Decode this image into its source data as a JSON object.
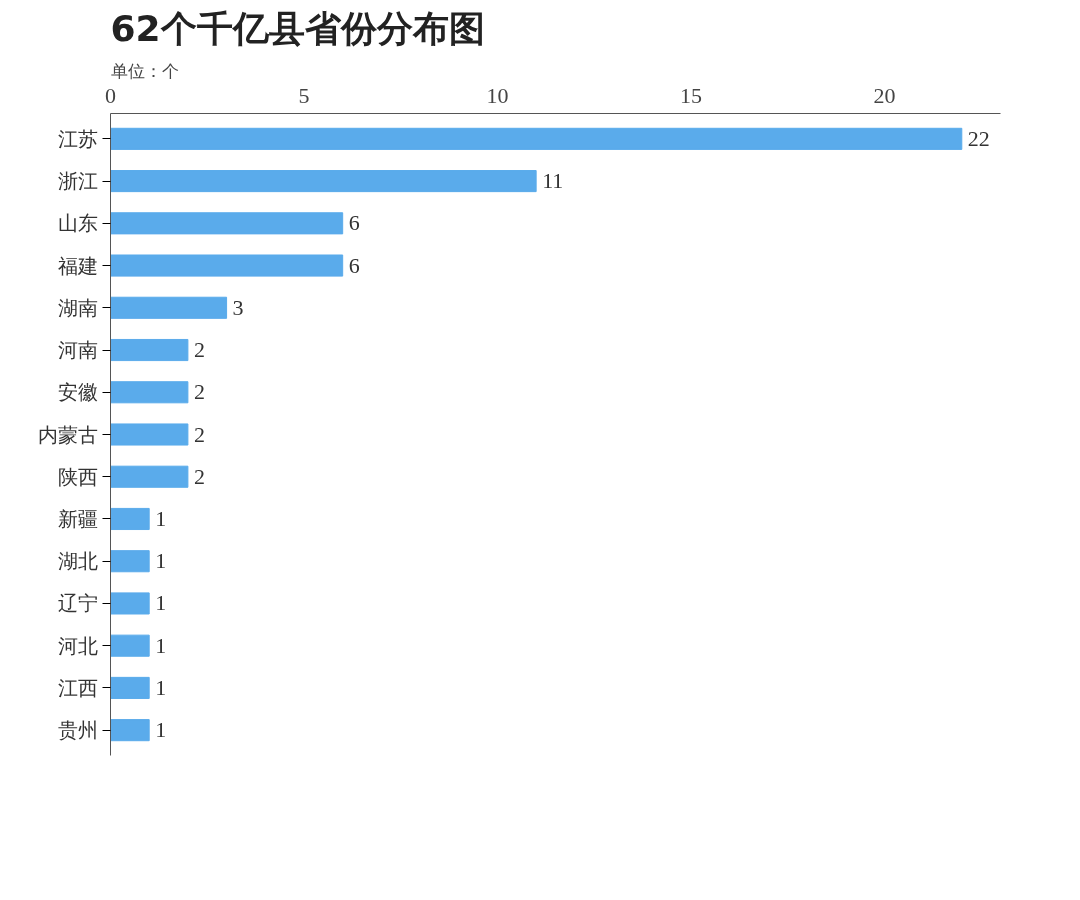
{
  "chart_data": {
    "type": "bar",
    "orientation": "horizontal",
    "title": "62个千亿县省份分布图",
    "subtitle": "单位：个",
    "categories": [
      "江苏",
      "浙江",
      "山东",
      "福建",
      "湖南",
      "河南",
      "安徽",
      "内蒙古",
      "陕西",
      "新疆",
      "湖北",
      "辽宁",
      "河北",
      "江西",
      "贵州"
    ],
    "values": [
      22,
      11,
      6,
      6,
      3,
      2,
      2,
      2,
      2,
      1,
      1,
      1,
      1,
      1,
      1
    ],
    "color": "#5aabeb",
    "xlim": [
      0,
      23
    ],
    "xticks": [
      0,
      5,
      10,
      15,
      20
    ],
    "data_labels": true,
    "grid": false
  }
}
